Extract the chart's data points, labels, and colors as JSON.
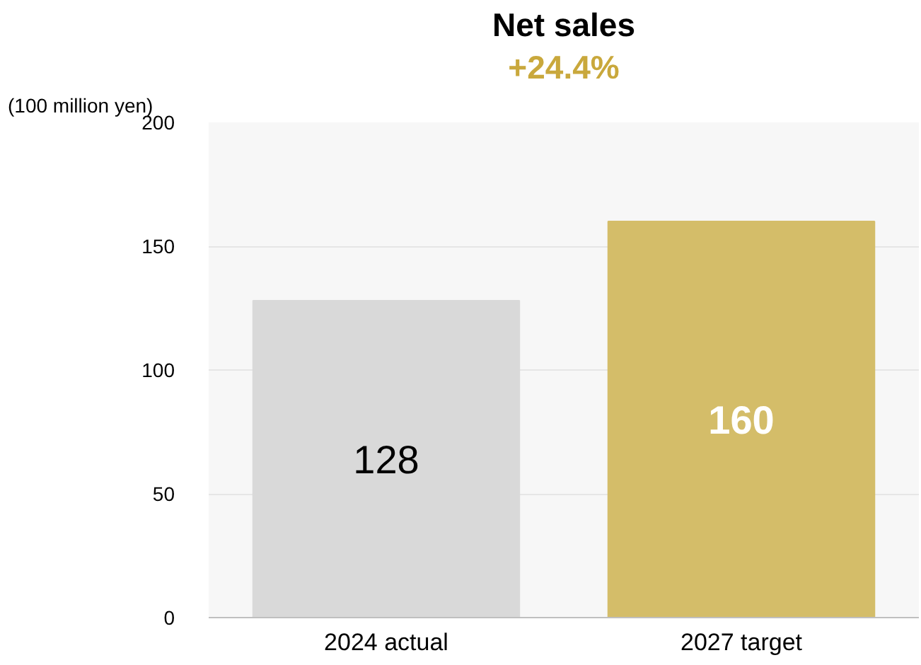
{
  "chart_data": {
    "type": "bar",
    "title": "Net sales",
    "subtitle": "+24.4%",
    "ylabel": "(100 million yen)",
    "categories": [
      "2024 actual",
      "2027 target"
    ],
    "values": [
      128,
      160
    ],
    "colors": [
      "#d9d9d9",
      "#d4bd69"
    ],
    "data_labels": true,
    "ylim": [
      0,
      200
    ],
    "yticks": [
      0,
      50,
      100,
      150,
      200
    ],
    "grid": "y"
  }
}
